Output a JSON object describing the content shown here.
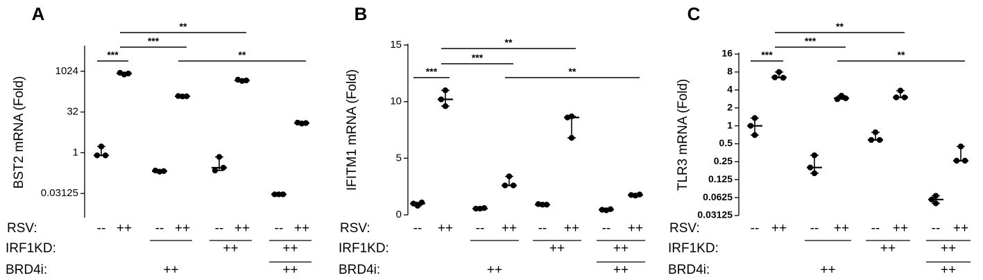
{
  "chart_data": [
    {
      "type": "scatter",
      "panel_label": "A",
      "ylabel": "BST2 mRNA  (Fold)",
      "yscale": "log2",
      "ylim": [
        0.004,
        8000
      ],
      "yticks": [
        {
          "value": 1024,
          "label": "1024"
        },
        {
          "value": 32,
          "label": "32"
        },
        {
          "value": 1,
          "label": "1"
        },
        {
          "value": 0.03125,
          "label": "0.03125"
        }
      ],
      "groups": [
        {
          "points": [
            1.7,
            0.8,
            0.8
          ],
          "median": 0.8
        },
        {
          "points": [
            780,
            900,
            850
          ],
          "median": 850
        },
        {
          "points": [
            0.2,
            0.22,
            0.21
          ],
          "median": 0.21
        },
        {
          "points": [
            120,
            125,
            122
          ],
          "median": 122
        },
        {
          "points": [
            0.7,
            0.22,
            0.28
          ],
          "median": 0.28
        },
        {
          "points": [
            450,
            500,
            470
          ],
          "median": 470
        },
        {
          "points": [
            0.029,
            0.029,
            0.029
          ],
          "median": 0.029
        },
        {
          "points": [
            12,
            13,
            12.5
          ],
          "median": 12.5
        }
      ],
      "significance": [
        {
          "from": 1,
          "to": 2,
          "label": "***"
        },
        {
          "from": 2,
          "to": 4,
          "label": "***"
        },
        {
          "from": 2,
          "to": 6,
          "label": "**"
        },
        {
          "from": 4,
          "to": 8,
          "label": "**"
        }
      ]
    },
    {
      "type": "scatter",
      "panel_label": "B",
      "ylabel": "IFITM1 mRNA  (Fold)",
      "yscale": "linear",
      "ylim": [
        0,
        15
      ],
      "yticks": [
        {
          "value": 0,
          "label": "0"
        },
        {
          "value": 5,
          "label": "5"
        },
        {
          "value": 10,
          "label": "10"
        },
        {
          "value": 15,
          "label": "15"
        }
      ],
      "groups": [
        {
          "points": [
            0.8,
            1.0,
            1.1
          ],
          "median": 1.0
        },
        {
          "points": [
            11.0,
            10.2,
            9.6
          ],
          "median": 10.2
        },
        {
          "points": [
            0.55,
            0.55,
            0.6
          ],
          "median": 0.55
        },
        {
          "points": [
            3.4,
            2.6,
            2.6
          ],
          "median": 2.6
        },
        {
          "points": [
            0.9,
            0.95,
            0.9
          ],
          "median": 0.9
        },
        {
          "points": [
            8.7,
            8.6,
            6.8
          ],
          "median": 8.6
        },
        {
          "points": [
            0.4,
            0.45,
            0.5
          ],
          "median": 0.45
        },
        {
          "points": [
            1.7,
            1.75,
            1.8
          ],
          "median": 1.75
        }
      ],
      "significance": [
        {
          "from": 1,
          "to": 2,
          "label": "***"
        },
        {
          "from": 2,
          "to": 4,
          "label": "***"
        },
        {
          "from": 2,
          "to": 6,
          "label": "**"
        },
        {
          "from": 4,
          "to": 8,
          "label": "**"
        }
      ]
    },
    {
      "type": "scatter",
      "panel_label": "C",
      "ylabel": "TLR3 mRNA  (Fold)",
      "yscale": "log2",
      "ylim": [
        0.03125,
        16
      ],
      "yticks": [
        {
          "value": 16,
          "label": "16"
        },
        {
          "value": 8,
          "label": "8"
        },
        {
          "value": 4,
          "label": "4"
        },
        {
          "value": 2,
          "label": "2"
        },
        {
          "value": 1,
          "label": "1"
        },
        {
          "value": 0.5,
          "label": "0.5"
        },
        {
          "value": 0.25,
          "label": "0.25"
        },
        {
          "value": 0.125,
          "label": "0.125"
        },
        {
          "value": 0.0625,
          "label": "0.0625"
        },
        {
          "value": 0.03125,
          "label": "0.03125"
        }
      ],
      "groups": [
        {
          "points": [
            1.35,
            1.0,
            0.7
          ],
          "median": 1.0
        },
        {
          "points": [
            8.0,
            6.5,
            6.4
          ],
          "median": 6.5
        },
        {
          "points": [
            0.32,
            0.2,
            0.16
          ],
          "median": 0.2
        },
        {
          "points": [
            3.2,
            2.8,
            2.9
          ],
          "median": 2.9
        },
        {
          "points": [
            0.78,
            0.58,
            0.58
          ],
          "median": 0.58
        },
        {
          "points": [
            3.9,
            3.0,
            3.0
          ],
          "median": 3.0
        },
        {
          "points": [
            0.067,
            0.058,
            0.05
          ],
          "median": 0.058
        },
        {
          "points": [
            0.45,
            0.26,
            0.26
          ],
          "median": 0.26
        }
      ],
      "significance": [
        {
          "from": 1,
          "to": 2,
          "label": "***"
        },
        {
          "from": 2,
          "to": 4,
          "label": "***"
        },
        {
          "from": 2,
          "to": 6,
          "label": "**"
        },
        {
          "from": 4,
          "to": 8,
          "label": "**"
        }
      ]
    }
  ],
  "conditions": {
    "rows": [
      {
        "label": "RSV:",
        "values": [
          "--",
          "++",
          "--",
          "++",
          "--",
          "++",
          "--",
          "++"
        ]
      },
      {
        "label": "IRF1KD:",
        "groups": [
          {
            "span": [
              5,
              6
            ],
            "text": "++"
          },
          {
            "span": [
              7,
              8
            ],
            "text": "++"
          }
        ],
        "lines": [
          [
            3,
            4
          ],
          [
            5,
            6
          ],
          [
            7,
            8
          ]
        ]
      },
      {
        "label": "BRD4i:",
        "groups": [
          {
            "span": [
              3,
              4
            ],
            "text": "++"
          },
          {
            "span": [
              7,
              8
            ],
            "text": "++"
          }
        ],
        "lines": [
          [
            7,
            8
          ]
        ]
      }
    ]
  }
}
